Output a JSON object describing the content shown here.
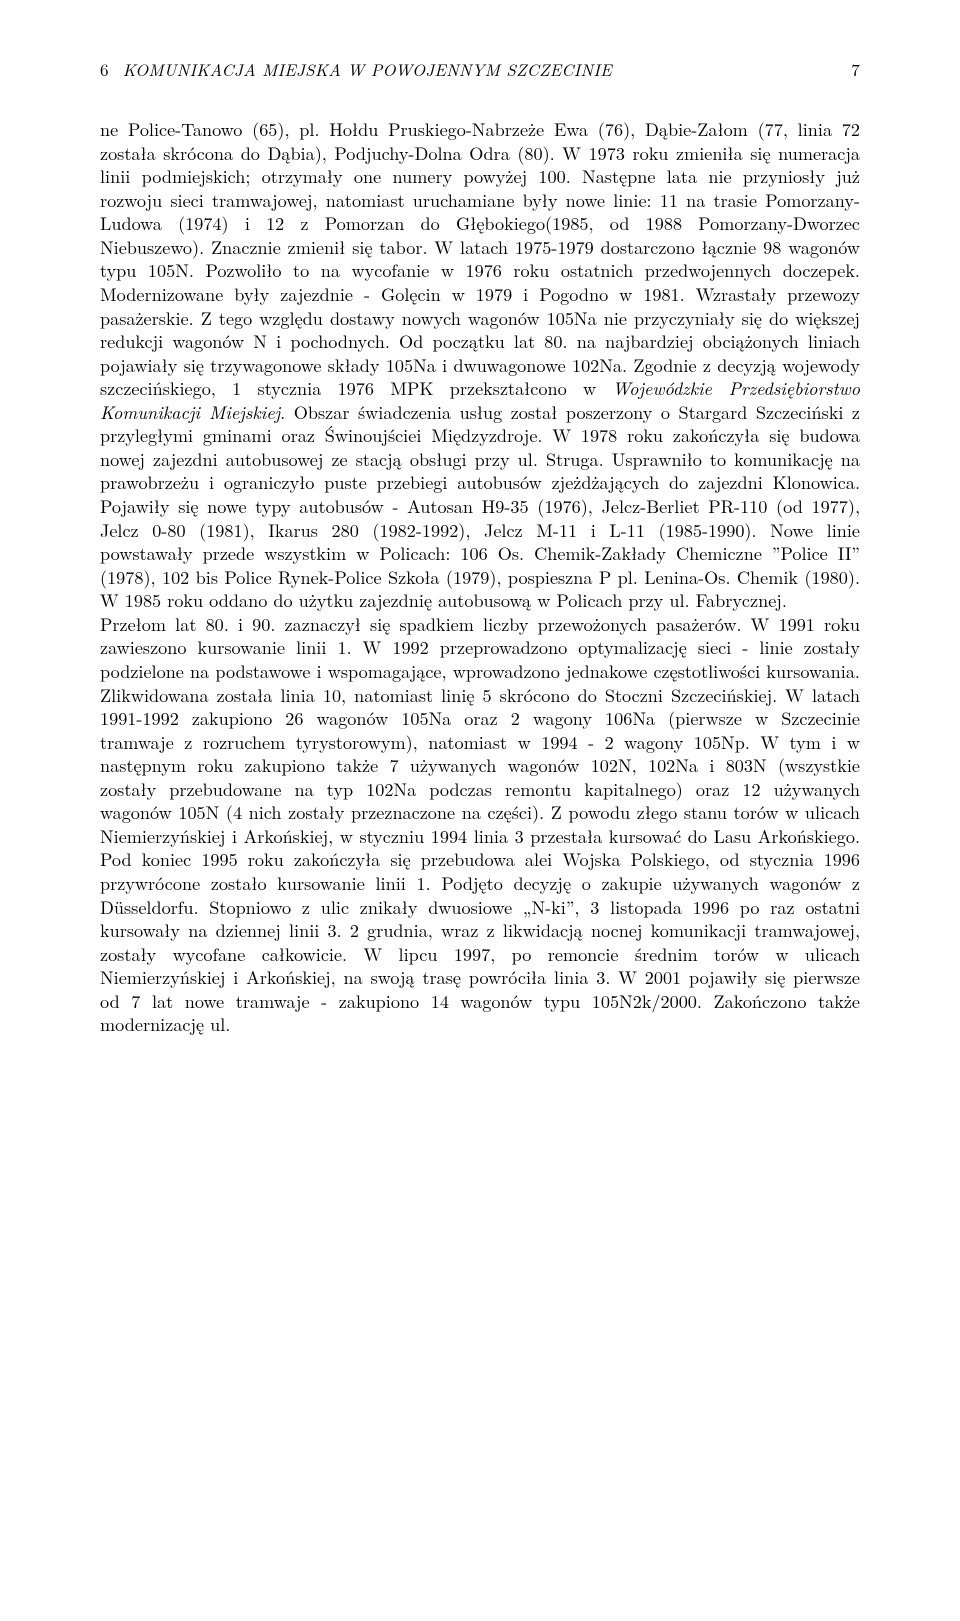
{
  "running_head": {
    "section_number": "6",
    "title": "KOMUNIKACJA MIEJSKA W POWOJENNYM SZCZECINIE",
    "page_number": "7"
  },
  "body": {
    "p1a": "ne Police-Tanowo (65), pl. Hołdu Pruskiego-Nabrzeże Ewa (76), Dąbie-Załom (77, linia 72 została skrócona do Dąbia), Podjuchy-Dolna Odra (80). W 1973 roku zmieniła się numeracja linii podmiejskich; otrzymały one numery powyżej 100. Następne lata nie przyniosły już rozwoju sieci tramwajowej, natomiast uruchamiane były nowe linie: 11 na trasie Pomorzany-Ludowa (1974) i 12 z Pomorzan do Głębokiego(1985, od 1988 Pomorzany-Dworzec Niebuszewo). Znacznie zmienił się tabor. W latach 1975-1979 dostarczono łącznie 98 wagonów typu 105N. Pozwoliło to na wycofanie w 1976 roku ostatnich przedwojennych doczepek. Modernizowane były zajezdnie - Golęcin w 1979 i Pogodno w 1981. Wzrastały przewozy pasażerskie. Z tego względu dostawy nowych wagonów 105Na nie przyczyniały się do większej redukcji wagonów N i pochodnych. Od początku lat 80. na najbardziej obciążonych liniach pojawiały się trzywagonowe składy 105Na i dwuwagonowe 102Na. Zgodnie z decyzją wojewody szczecińskiego, 1 stycznia 1976 MPK przekształcono w ",
    "p1_italic": "Wojewódzkie Przedsiębiorstwo Komunikacji Miejskiej",
    "p1b": ". Obszar świadczenia usług został poszerzony o Stargard Szczeciński z przyległymi gminami oraz Świnoujściei Międzyzdroje. W 1978 roku zakończyła się budowa nowej zajezdni autobusowej ze stacją obsługi przy ul. Struga. Usprawniło to komunikację na prawobrzeżu i ograniczyło puste przebiegi autobusów zjeżdżających do zajezdni Klonowica. Pojawiły się nowe typy autobusów - Autosan H9-35 (1976), Jelcz-Berliet PR-110 (od 1977), Jelcz 0-80 (1981), Ikarus 280 (1982-1992), Jelcz M-11 i L-11 (1985-1990). Nowe linie powstawały przede wszystkim w Policach: 106 Os. Chemik-Zakłady Chemiczne ”Police II” (1978), 102 bis Police Rynek-Police Szkoła (1979), pospieszna P pl. Lenina-Os. Chemik (1980). W 1985 roku oddano do użytku zajezdnię autobusową w Policach przy ul. Fabrycznej.",
    "p2": "Przełom lat 80. i 90. zaznaczył się spadkiem liczby przewożonych pasażerów. W 1991 roku zawieszono kursowanie linii 1. W 1992 przeprowadzono optymalizację sieci - linie zostały podzielone na podstawowe i wspomagające, wprowadzono jednakowe częstotliwości kursowania. Zlikwidowana została linia 10, natomiast linię 5 skrócono do Stoczni Szczecińskiej. W latach 1991-1992 zakupiono 26 wagonów 105Na oraz 2 wagony 106Na (pierwsze w Szczecinie tramwaje z rozruchem tyrystorowym), natomiast w 1994 - 2 wagony 105Np. W tym i w następnym roku zakupiono także 7 używanych wagonów 102N, 102Na i 803N (wszystkie zostały przebudowane na typ 102Na podczas remontu kapitalnego) oraz 12 używanych wagonów 105N (4 nich zostały przeznaczone na części). Z powodu złego stanu torów w ulicach Niemierzyńskiej i Arkońskiej, w styczniu 1994 linia 3 przestała kursować do Lasu Arkońskiego. Pod koniec 1995 roku zakończyła się przebudowa alei Wojska Polskiego, od stycznia 1996 przywrócone zostało kursowanie linii 1. Podjęto decyzję o zakupie używanych wagonów z Düsseldorfu. Stopniowo z ulic znikały dwuosiowe „N-ki”, 3 listopada 1996 po raz ostatni kursowały na dziennej linii 3. 2 grudnia, wraz z likwidacją nocnej komunikacji tramwajowej, zostały wycofane całkowicie. W lipcu 1997, po remoncie średnim torów w ulicach Niemierzyńskiej i Arkońskiej, na swoją trasę powróciła linia 3. W 2001 pojawiły się pierwsze od 7 lat nowe tramwaje - zakupiono 14 wagonów typu 105N2k/2000. Zakończono także modernizację ul."
  }
}
